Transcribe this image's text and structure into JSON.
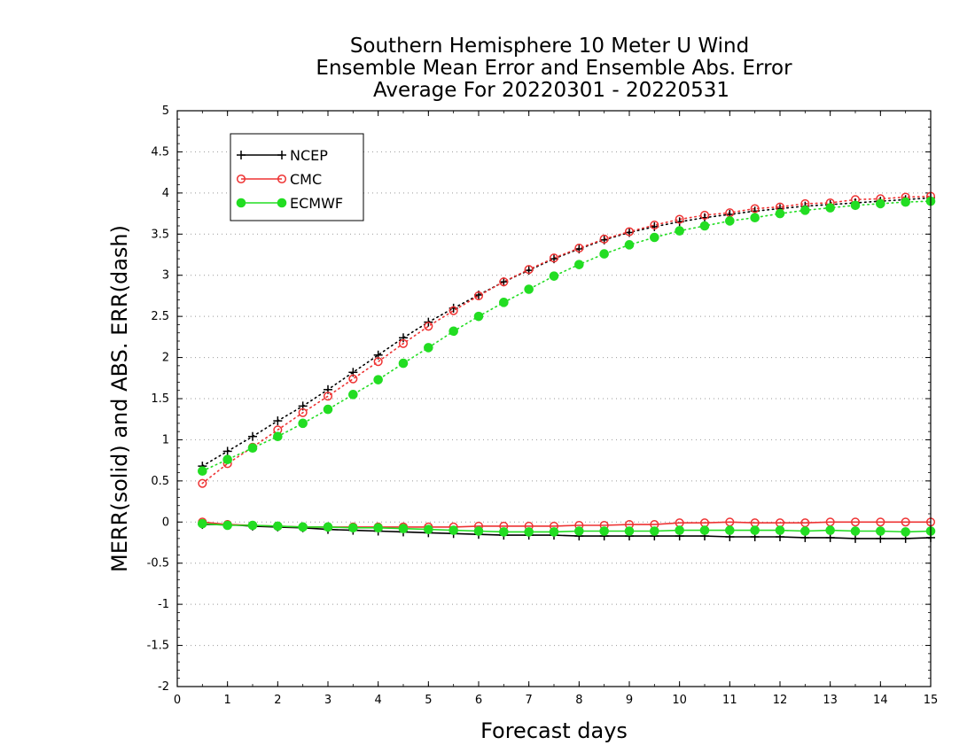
{
  "chart_data": {
    "type": "line",
    "title": [
      "Southern Hemisphere 10 Meter U Wind",
      "Ensemble Mean Error and Ensemble Abs. Error",
      "Average For 20220301 - 20220531"
    ],
    "xlabel": "Forecast days",
    "ylabel": "MERR(solid) and ABS. ERR(dash)",
    "xlim": [
      0,
      15
    ],
    "ylim": [
      -2,
      5
    ],
    "xticks": [
      "0",
      "1",
      "2",
      "3",
      "4",
      "5",
      "6",
      "7",
      "8",
      "9",
      "10",
      "11",
      "12",
      "13",
      "14",
      "15"
    ],
    "yticks": [
      "5",
      "4.5",
      "4",
      "3.5",
      "3",
      "2.5",
      "2",
      "1.5",
      "1",
      "0.5",
      "0",
      "-0.5",
      "-1",
      "-1.5",
      "-2"
    ],
    "grid": "horizontal dotted",
    "legend_position": "top-left",
    "x": [
      0.5,
      1,
      1.5,
      2,
      2.5,
      3,
      3.5,
      4,
      4.5,
      5,
      5.5,
      6,
      6.5,
      7,
      7.5,
      8,
      8.5,
      9,
      9.5,
      10,
      10.5,
      11,
      11.5,
      12,
      12.5,
      13,
      13.5,
      14,
      14.5,
      15
    ],
    "series": [
      {
        "name": "NCEP",
        "color": "#000000",
        "marker": "plus",
        "abs_err": [
          0.68,
          0.86,
          1.04,
          1.23,
          1.41,
          1.61,
          1.82,
          2.03,
          2.24,
          2.43,
          2.6,
          2.76,
          2.92,
          3.06,
          3.2,
          3.32,
          3.43,
          3.52,
          3.59,
          3.65,
          3.7,
          3.74,
          3.78,
          3.81,
          3.84,
          3.86,
          3.88,
          3.9,
          3.92,
          3.94
        ],
        "mean_err": [
          -0.03,
          -0.03,
          -0.05,
          -0.06,
          -0.07,
          -0.09,
          -0.1,
          -0.11,
          -0.12,
          -0.13,
          -0.14,
          -0.15,
          -0.16,
          -0.16,
          -0.16,
          -0.17,
          -0.17,
          -0.17,
          -0.17,
          -0.17,
          -0.17,
          -0.18,
          -0.18,
          -0.18,
          -0.19,
          -0.19,
          -0.2,
          -0.2,
          -0.2,
          -0.19
        ]
      },
      {
        "name": "CMC",
        "color": "#ee3333",
        "marker": "open-circle",
        "abs_err": [
          0.47,
          0.71,
          0.91,
          1.12,
          1.33,
          1.53,
          1.74,
          1.95,
          2.17,
          2.38,
          2.57,
          2.75,
          2.92,
          3.07,
          3.21,
          3.33,
          3.44,
          3.53,
          3.61,
          3.68,
          3.73,
          3.76,
          3.81,
          3.83,
          3.87,
          3.88,
          3.92,
          3.93,
          3.95,
          3.96
        ],
        "mean_err": [
          0,
          -0.03,
          -0.04,
          -0.05,
          -0.06,
          -0.06,
          -0.06,
          -0.06,
          -0.06,
          -0.06,
          -0.06,
          -0.05,
          -0.05,
          -0.05,
          -0.05,
          -0.04,
          -0.04,
          -0.03,
          -0.03,
          -0.01,
          -0.01,
          0,
          -0.01,
          -0.01,
          -0.01,
          0,
          0,
          0,
          0,
          0
        ]
      },
      {
        "name": "ECMWF",
        "color": "#22dd22",
        "marker": "filled-circle",
        "abs_err": [
          0.62,
          0.76,
          0.9,
          1.04,
          1.2,
          1.37,
          1.55,
          1.73,
          1.93,
          2.12,
          2.32,
          2.5,
          2.67,
          2.83,
          2.99,
          3.13,
          3.26,
          3.37,
          3.46,
          3.54,
          3.6,
          3.66,
          3.7,
          3.75,
          3.79,
          3.82,
          3.85,
          3.87,
          3.89,
          3.9
        ],
        "mean_err": [
          -0.02,
          -0.04,
          -0.04,
          -0.05,
          -0.06,
          -0.06,
          -0.07,
          -0.07,
          -0.08,
          -0.09,
          -0.1,
          -0.11,
          -0.12,
          -0.12,
          -0.12,
          -0.11,
          -0.11,
          -0.11,
          -0.11,
          -0.1,
          -0.1,
          -0.1,
          -0.1,
          -0.1,
          -0.11,
          -0.1,
          -0.11,
          -0.11,
          -0.12,
          -0.11
        ]
      }
    ]
  }
}
